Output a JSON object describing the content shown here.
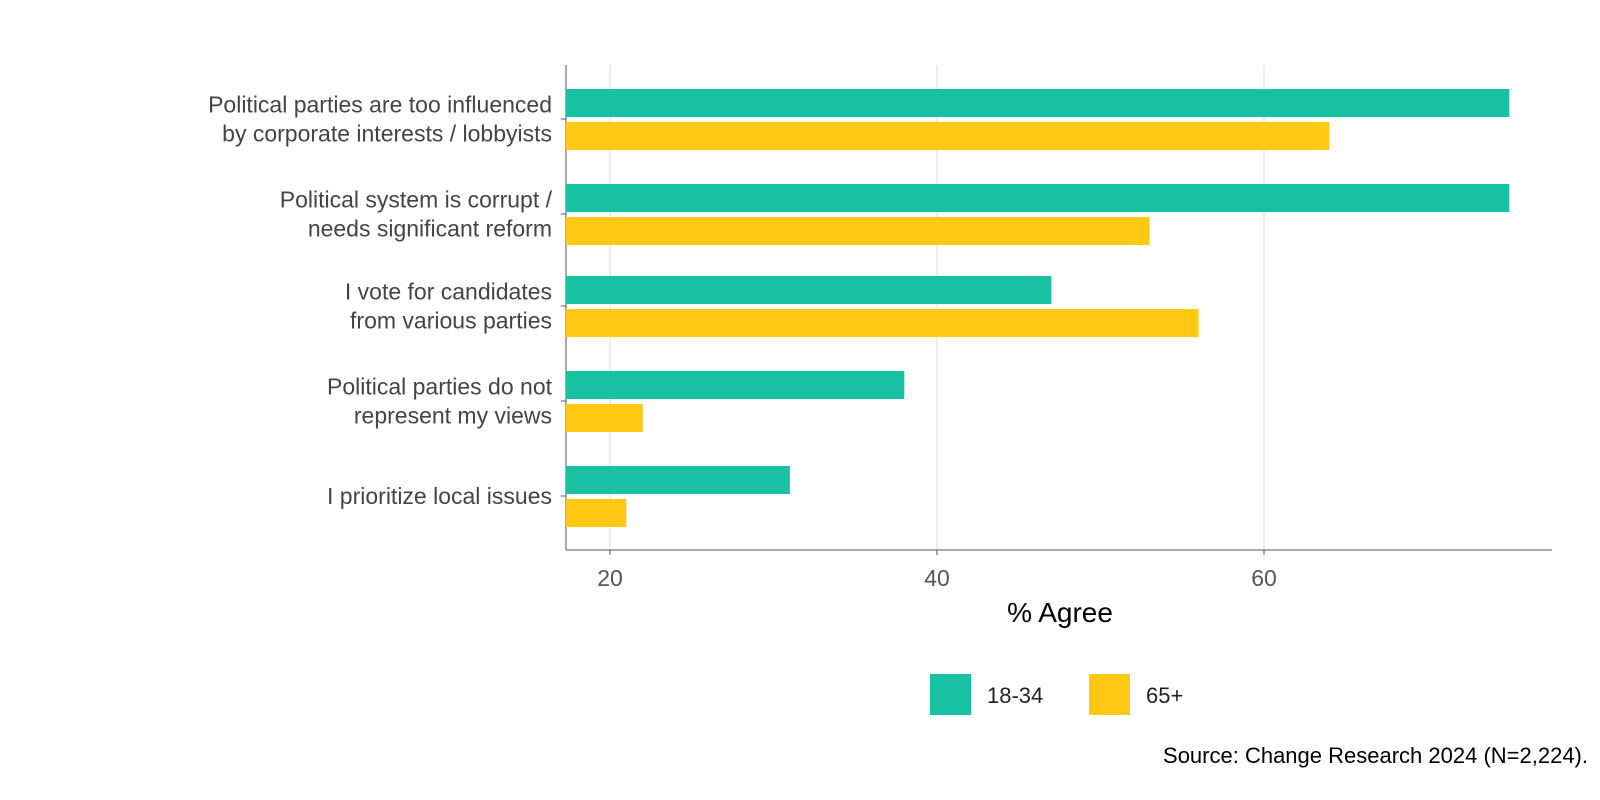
{
  "chart_data": {
    "type": "bar",
    "orientation": "horizontal",
    "categories": [
      [
        "Political parties are too influenced",
        "by corporate interests / lobbyists"
      ],
      [
        "Political system is corrupt /",
        "needs significant reform"
      ],
      [
        "I vote for candidates",
        "from various parties"
      ],
      [
        "Political parties do not",
        "represent my views"
      ],
      [
        "I prioritize local issues"
      ]
    ],
    "series": [
      {
        "name": "18-34",
        "color": "#19C1A3",
        "values": [
          75,
          75,
          47,
          38,
          31
        ]
      },
      {
        "name": "65+",
        "color": "#FFC914",
        "values": [
          64,
          53,
          56,
          22,
          21
        ]
      }
    ],
    "xlabel": "% Agree",
    "ylabel": "",
    "xlim": [
      17.3,
      77.6
    ],
    "xticks": [
      20,
      40,
      60
    ],
    "grid": "vertical",
    "legend": "bottom",
    "source": "Source: Change Research 2024 (N=2,224)."
  }
}
